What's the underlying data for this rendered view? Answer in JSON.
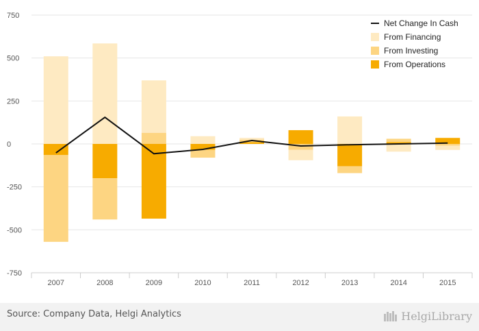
{
  "chart_data": {
    "type": "bar",
    "stacked": true,
    "categories": [
      "2007",
      "2008",
      "2009",
      "2010",
      "2011",
      "2012",
      "2013",
      "2014",
      "2015"
    ],
    "ylim": [
      -750,
      750
    ],
    "yticks": [
      750,
      500,
      250,
      0,
      -250,
      -500,
      -750
    ],
    "grid": true,
    "legend_position": "top-right",
    "series": [
      {
        "name": "From Operations",
        "kind": "bar",
        "color": "#f7ab00",
        "values": [
          -65,
          -200,
          -435,
          -35,
          10,
          80,
          -130,
          10,
          35
        ]
      },
      {
        "name": "From Investing",
        "kind": "bar",
        "color": "#fdd582",
        "values": [
          -505,
          -240,
          65,
          -45,
          15,
          -35,
          -40,
          20,
          -10
        ]
      },
      {
        "name": "From Financing",
        "kind": "bar",
        "color": "#feeac2",
        "values": [
          510,
          585,
          305,
          45,
          10,
          -60,
          160,
          -45,
          -25
        ]
      },
      {
        "name": "Net Change In Cash",
        "kind": "line",
        "color": "#111111",
        "values": [
          -52,
          155,
          -57,
          -32,
          20,
          -12,
          -5,
          0,
          5
        ]
      }
    ],
    "legend_order": [
      "Net Change In Cash",
      "From Financing",
      "From Investing",
      "From Operations"
    ]
  },
  "footer": {
    "source": "Source: Company Data, Helgi Analytics",
    "brand": "HelgiLibrary"
  },
  "brand_icon": "books-icon"
}
